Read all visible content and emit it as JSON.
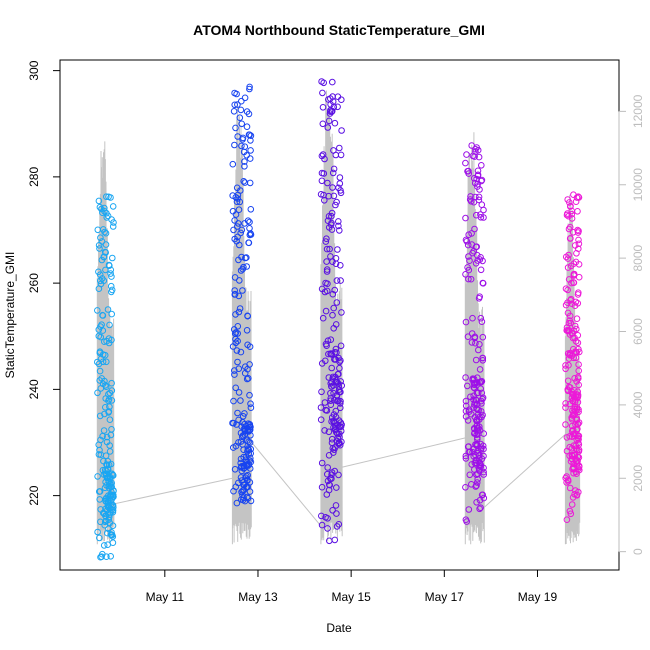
{
  "chart_data": {
    "type": "scatter",
    "title": "ATOM4 Northbound StaticTemperature_GMI",
    "xlabel": "Date",
    "ylabel": "StaticTemperature_GMI",
    "x_ticks": [
      "May 11",
      "May 13",
      "May 15",
      "May 17",
      "May 19"
    ],
    "x_tick_values": [
      11,
      13,
      15,
      17,
      19
    ],
    "xlim": [
      8.75,
      20.75
    ],
    "y_ticks": [
      220,
      240,
      260,
      280,
      300
    ],
    "ylim": [
      206,
      302
    ],
    "y2_ticks": [
      0,
      2000,
      4000,
      6000,
      8000,
      10000,
      12000
    ],
    "y2lim": [
      -500,
      13400
    ],
    "y2_axis_role": "altitude trace (grey line)",
    "flights": [
      {
        "start": 9.55,
        "end": 9.9,
        "color": "#1aa6f2",
        "temperature_range": [
          208,
          277
        ],
        "cluster": [
          212,
          226
        ],
        "altitude_max": 11300
      },
      {
        "start": 12.45,
        "end": 12.85,
        "color": "#1844f0",
        "temperature_range": [
          218,
          297
        ],
        "cluster": [
          219,
          234
        ],
        "altitude_max": 12200
      },
      {
        "start": 14.35,
        "end": 14.8,
        "color": "#5a10e2",
        "temperature_range": [
          211,
          298
        ],
        "cluster": [
          228,
          247
        ],
        "altitude_max": 12800
      },
      {
        "start": 17.45,
        "end": 17.85,
        "color": "#9d10e8",
        "temperature_range": [
          215,
          286
        ],
        "cluster": [
          223,
          242
        ],
        "altitude_max": 11500
      },
      {
        "start": 19.6,
        "end": 19.9,
        "color": "#ec19d8",
        "temperature_range": [
          215,
          277
        ],
        "cluster": [
          224,
          240
        ],
        "altitude_max": 9700
      }
    ],
    "transit_segments": [
      {
        "from_date": 9.9,
        "from_alt": 1300,
        "to_date": 12.45,
        "to_alt": 2000
      },
      {
        "from_date": 12.85,
        "from_alt": 3000,
        "to_date": 14.35,
        "to_alt": 700
      },
      {
        "from_date": 14.8,
        "from_alt": 2300,
        "to_date": 17.45,
        "to_alt": 3100
      },
      {
        "from_date": 17.85,
        "from_alt": 1200,
        "to_date": 19.6,
        "to_alt": 3200
      }
    ]
  }
}
